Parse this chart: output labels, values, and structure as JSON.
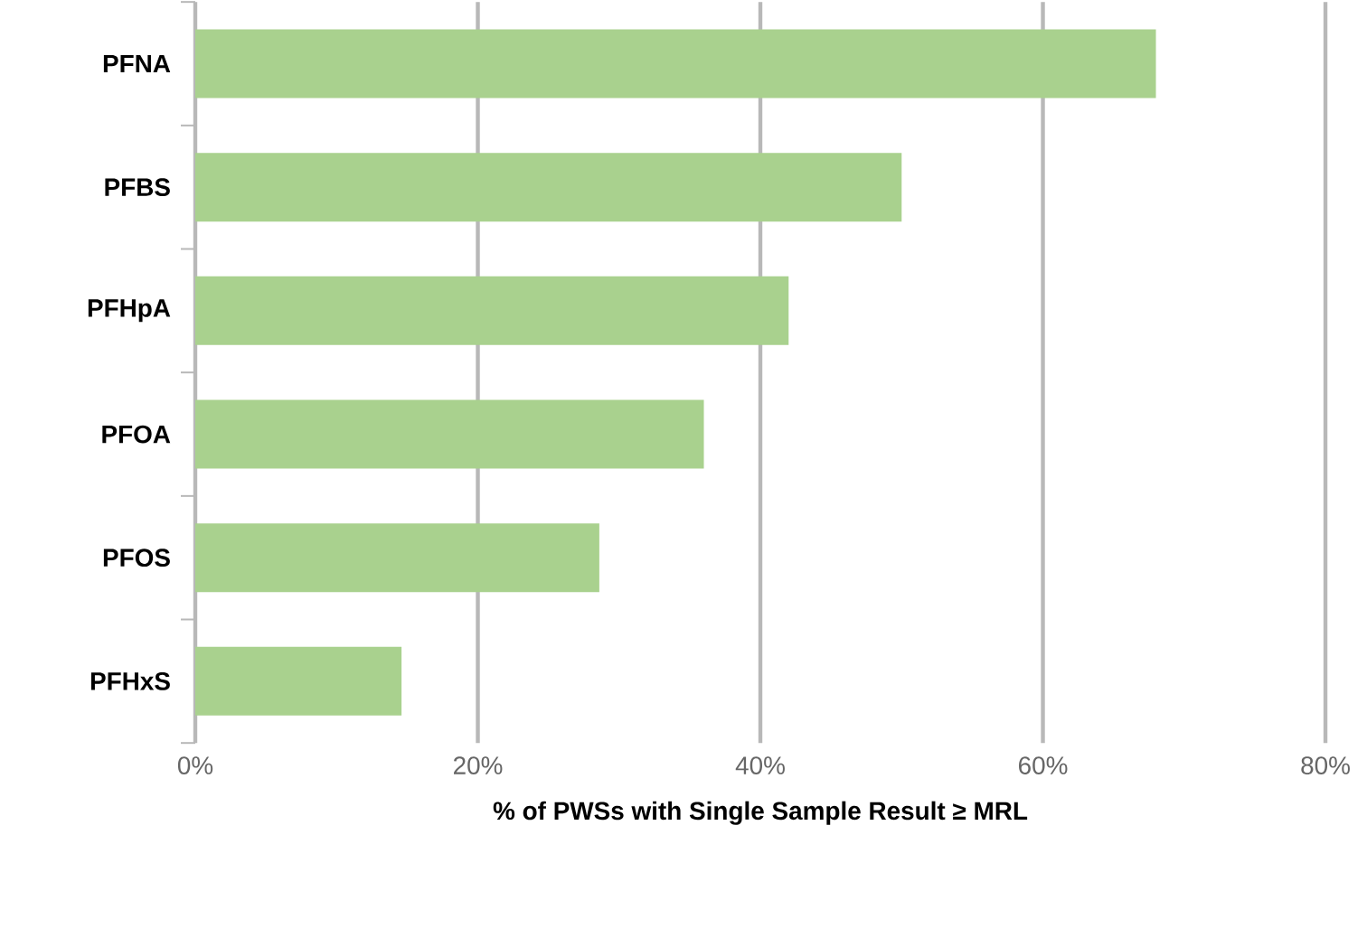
{
  "chart_data": {
    "type": "bar",
    "orientation": "horizontal",
    "xlabel": "% of PWSs with Single Sample Result ≥ MRL",
    "categories": [
      "PFNA",
      "PFBS",
      "PFHpA",
      "PFOA",
      "PFOS",
      "PFHxS"
    ],
    "values": [
      68,
      50,
      42,
      36,
      28.6,
      14.6
    ],
    "color": "#a9d18e",
    "xlim": [
      0,
      80
    ],
    "xticks": [
      {
        "value": 0,
        "label": "0%"
      },
      {
        "value": 20,
        "label": "20%"
      },
      {
        "value": 40,
        "label": "40%"
      },
      {
        "value": 60,
        "label": "60%"
      },
      {
        "value": 80,
        "label": "80%"
      }
    ],
    "grid": "x"
  }
}
